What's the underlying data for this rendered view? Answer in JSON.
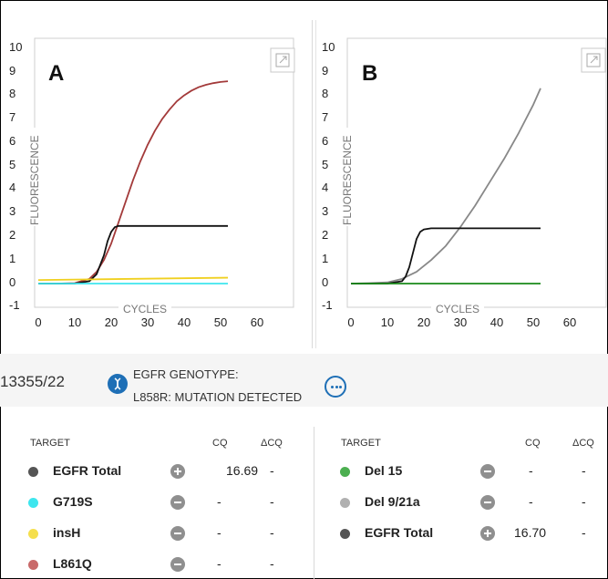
{
  "charts": [
    {
      "panel_label": "A",
      "y_axis_title": "FLUORESCENCE",
      "x_axis_title": "CYCLES",
      "y_ticks": [
        "10",
        "9",
        "8",
        "7",
        "6",
        "5",
        "4",
        "3",
        "2",
        "1",
        "0",
        "-1"
      ],
      "x_ticks": [
        "0",
        "10",
        "20",
        "30",
        "40",
        "50",
        "60"
      ],
      "expand_icon": "expand-icon"
    },
    {
      "panel_label": "B",
      "y_axis_title": "FLUORESCENCE",
      "x_axis_title": "CYCLES",
      "y_ticks": [
        "10",
        "9",
        "8",
        "7",
        "6",
        "5",
        "4",
        "3",
        "2",
        "1",
        "0",
        "-1"
      ],
      "x_ticks": [
        "0",
        "10",
        "20",
        "30",
        "40",
        "50",
        "60"
      ],
      "expand_icon": "expand-icon"
    }
  ],
  "chart_data": [
    {
      "type": "line",
      "xlim": [
        0,
        60
      ],
      "ylim": [
        -1,
        10
      ],
      "xlabel": "CYCLES",
      "ylabel": "FLUORESCENCE",
      "series": [
        {
          "color": "#a33a3a",
          "x": [
            0,
            5,
            10,
            14,
            16,
            18,
            20,
            22,
            24,
            26,
            28,
            30,
            32,
            34,
            36,
            38,
            40,
            42,
            44,
            46,
            48,
            50,
            52
          ],
          "y": [
            0,
            0,
            0.02,
            0.2,
            0.5,
            1.0,
            1.7,
            2.6,
            3.5,
            4.4,
            5.2,
            5.9,
            6.5,
            7.0,
            7.4,
            7.75,
            8.0,
            8.2,
            8.35,
            8.45,
            8.52,
            8.57,
            8.6
          ]
        },
        {
          "color": "#111111",
          "x": [
            0,
            10,
            14,
            16,
            18,
            19,
            20,
            21,
            22,
            24,
            30,
            40,
            52
          ],
          "y": [
            0,
            0,
            0.1,
            0.4,
            1.2,
            1.8,
            2.2,
            2.4,
            2.45,
            2.45,
            2.45,
            2.45,
            2.45
          ]
        },
        {
          "color": "#f0d020",
          "x": [
            0,
            52
          ],
          "y": [
            0.15,
            0.25
          ]
        },
        {
          "color": "#3ee6ee",
          "x": [
            0,
            52
          ],
          "y": [
            0,
            0
          ]
        }
      ]
    },
    {
      "type": "line",
      "xlim": [
        0,
        60
      ],
      "ylim": [
        -1,
        10
      ],
      "xlabel": "CYCLES",
      "ylabel": "FLUORESCENCE",
      "series": [
        {
          "color": "#888888",
          "x": [
            0,
            5,
            10,
            14,
            18,
            22,
            26,
            30,
            34,
            38,
            42,
            46,
            50,
            52
          ],
          "y": [
            0,
            0.02,
            0.05,
            0.2,
            0.5,
            1.0,
            1.6,
            2.4,
            3.3,
            4.3,
            5.3,
            6.4,
            7.6,
            8.3
          ]
        },
        {
          "color": "#111111",
          "x": [
            0,
            10,
            14,
            15,
            16,
            17,
            18,
            19,
            20,
            22,
            30,
            40,
            52
          ],
          "y": [
            0,
            0,
            0.1,
            0.3,
            0.7,
            1.3,
            1.9,
            2.2,
            2.3,
            2.35,
            2.35,
            2.35,
            2.35
          ]
        },
        {
          "color": "#1a8a1a",
          "x": [
            0,
            52
          ],
          "y": [
            0,
            0
          ]
        }
      ]
    }
  ],
  "result": {
    "sample_id": "13355/22",
    "genotype_title": "EGFR GENOTYPE:",
    "genotype_value": "L858R: MUTATION DETECTED",
    "dna_icon": "dna-icon",
    "more_icon": "more-icon"
  },
  "tables": [
    {
      "headers": {
        "target": "TARGET",
        "cq": "CQ",
        "dcq": "ΔCQ"
      },
      "rows": [
        {
          "color": "#555555",
          "name": "EGFR Total",
          "sign": "plus",
          "cq": "16.69",
          "dcq": "-"
        },
        {
          "color": "#3ee6ee",
          "name": "G719S",
          "sign": "minus",
          "cq": "-",
          "dcq": "-"
        },
        {
          "color": "#f5df4d",
          "name": "insH",
          "sign": "minus",
          "cq": "-",
          "dcq": "-"
        },
        {
          "color": "#c96a6a",
          "name": "L861Q",
          "sign": "minus",
          "cq": "-",
          "dcq": "-"
        }
      ]
    },
    {
      "headers": {
        "target": "TARGET",
        "cq": "CQ",
        "dcq": "ΔCQ"
      },
      "rows": [
        {
          "color": "#4caf50",
          "name": "Del 15",
          "sign": "minus",
          "cq": "-",
          "dcq": "-"
        },
        {
          "color": "#b0b0b0",
          "name": "Del 9/21a",
          "sign": "minus",
          "cq": "-",
          "dcq": "-"
        },
        {
          "color": "#555555",
          "name": "EGFR Total",
          "sign": "plus",
          "cq": "16.70",
          "dcq": "-"
        }
      ]
    }
  ]
}
